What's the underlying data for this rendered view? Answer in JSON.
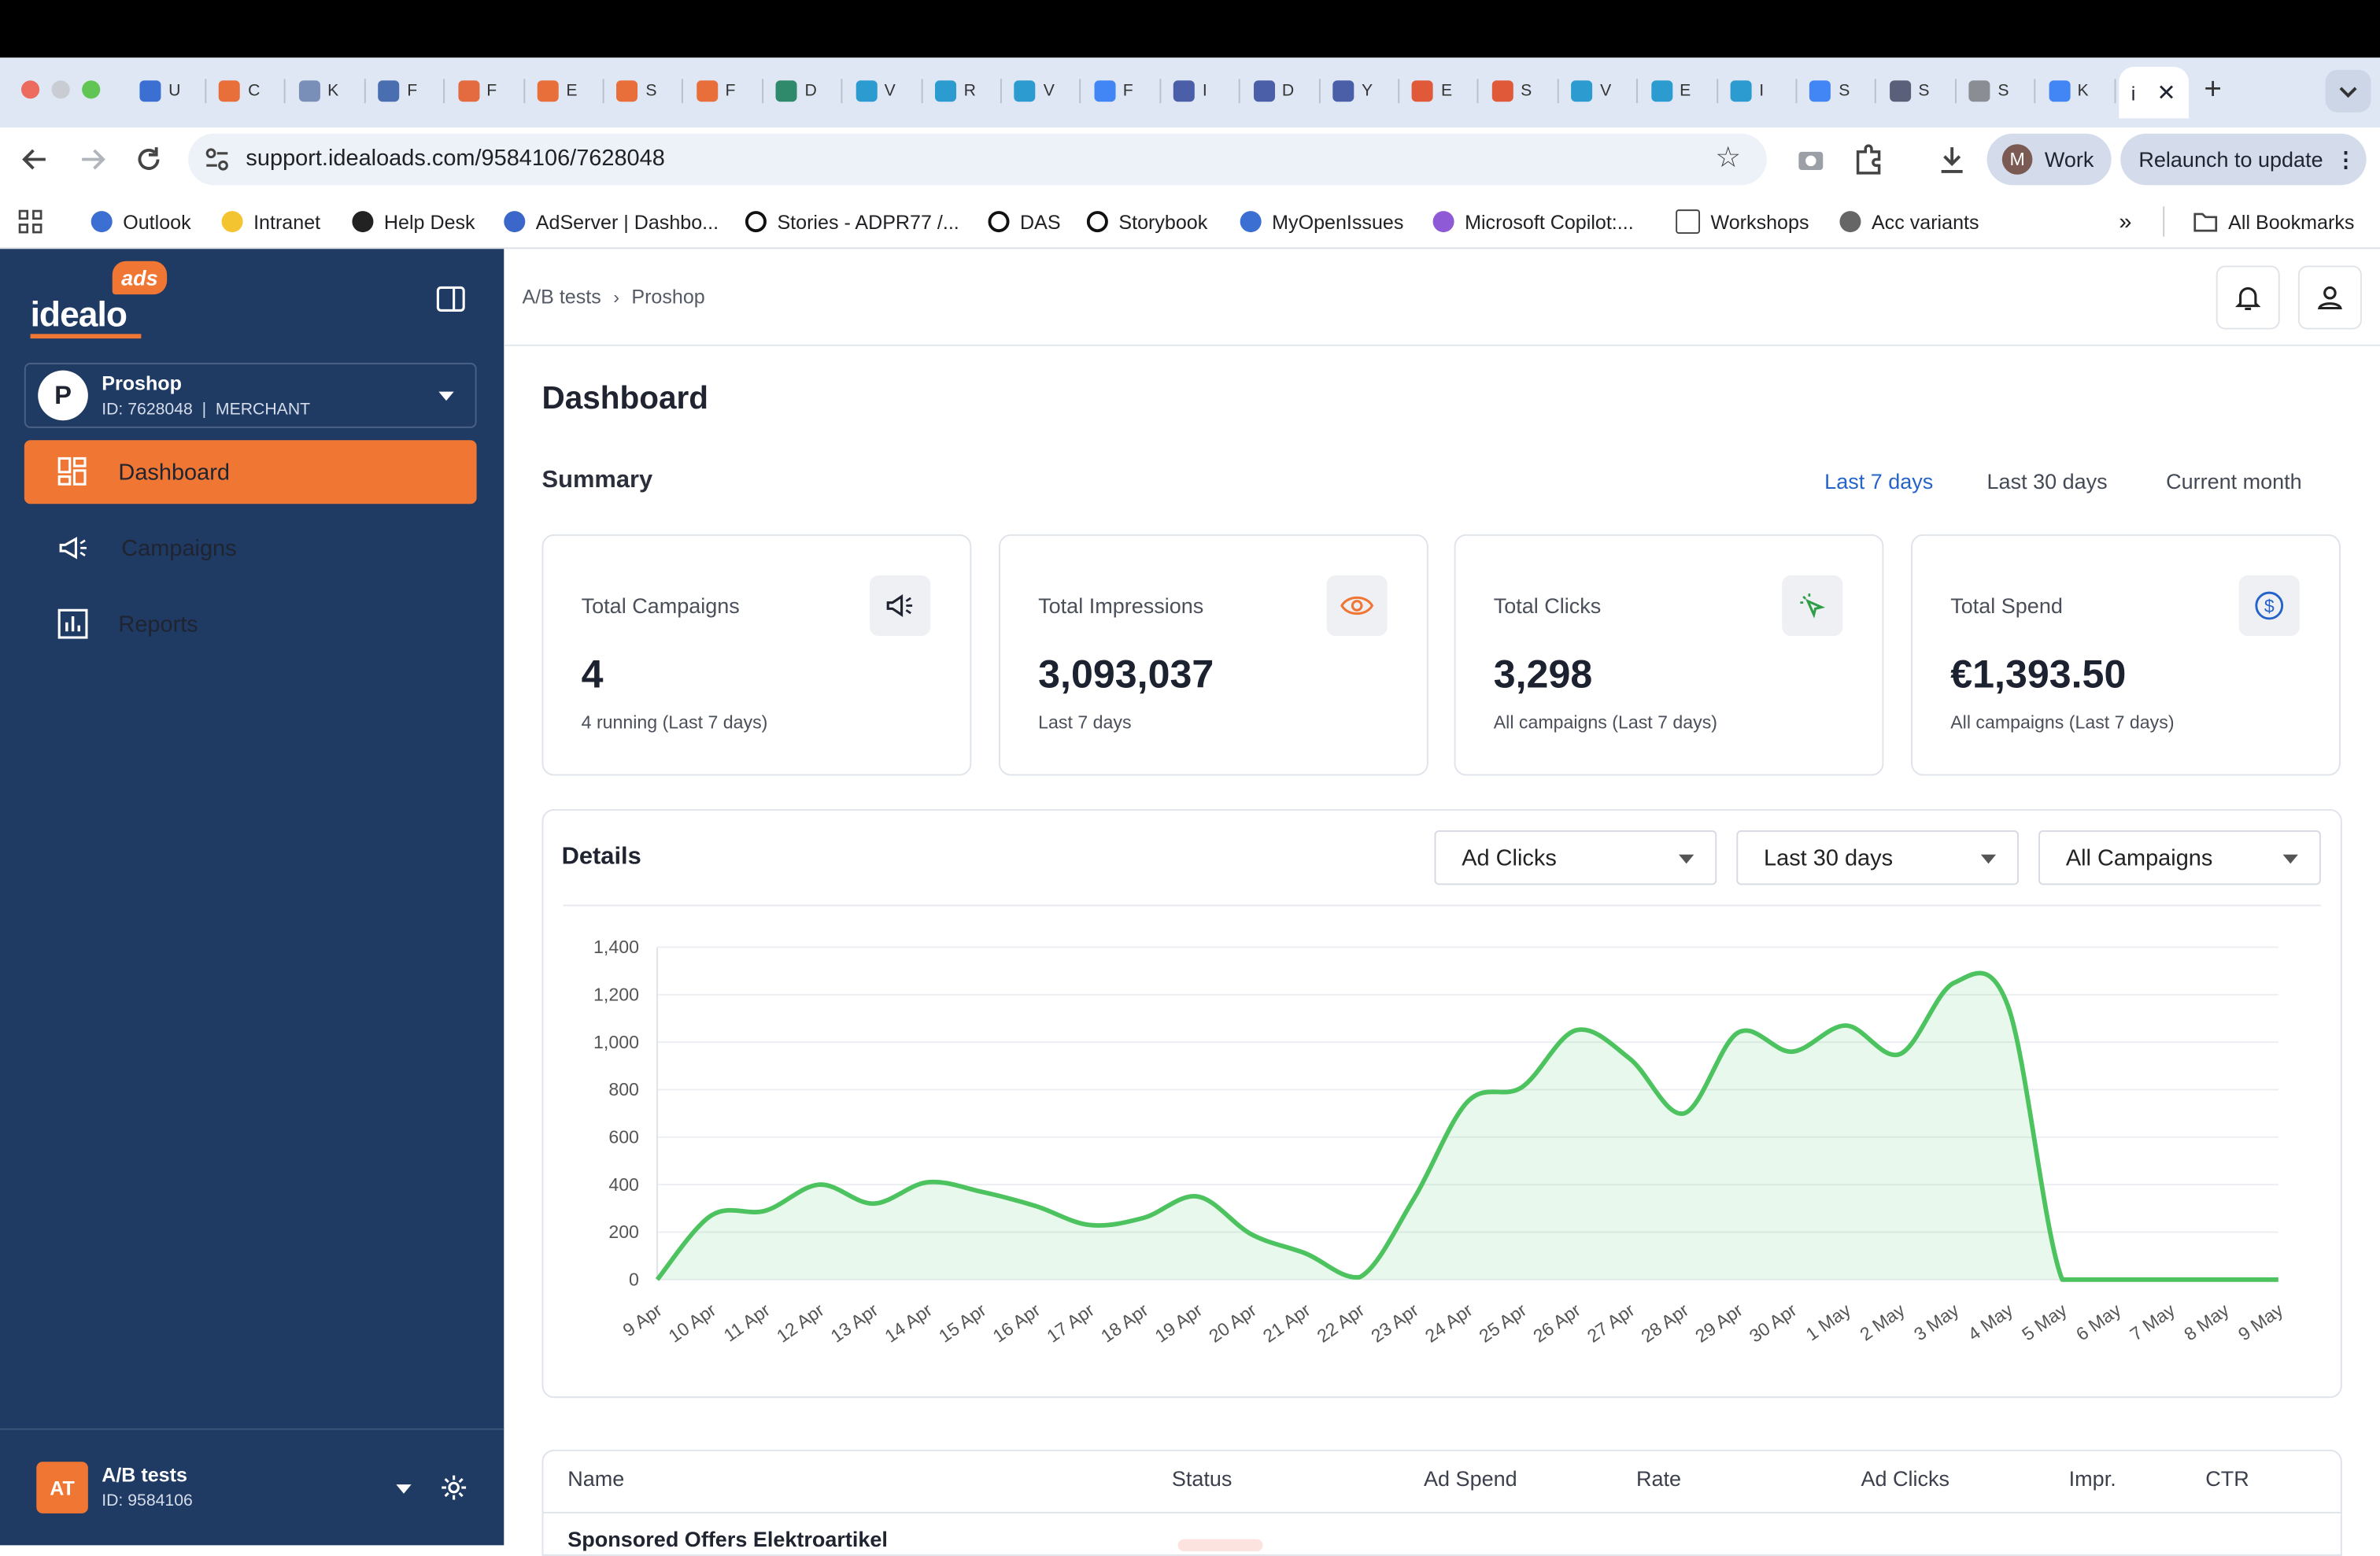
{
  "browser": {
    "tabs": [
      "U",
      "C",
      "K",
      "F",
      "F",
      "E",
      "S",
      "F",
      "D",
      "V",
      "R",
      "V",
      "F",
      "I",
      "D",
      "Y",
      "E",
      "S",
      "V",
      "E",
      "I",
      "S",
      "S",
      "S",
      "K"
    ],
    "active_tab_label": "i",
    "url": "support.idealoads.com/9584106/7628048",
    "profile_initial": "M",
    "profile_label": "Work",
    "relaunch_label": "Relaunch to update",
    "bookmarks": [
      "Outlook",
      "Intranet",
      "Help Desk",
      "AdServer | Dashbo...",
      "Stories - ADPR77 /...",
      "DAS",
      "Storybook",
      "MyOpenIssues",
      "Microsoft Copilot:...",
      "Workshops",
      "Acc variants"
    ],
    "more_bookmarks": "»",
    "all_bookmarks": "All Bookmarks"
  },
  "sidebar": {
    "logo_badge": "ads",
    "logo_text": "idealo",
    "account": {
      "initial": "P",
      "name": "Proshop",
      "meta": "ID: 7628048  |  MERCHANT"
    },
    "nav": [
      "Dashboard",
      "Campaigns",
      "Reports"
    ],
    "footer": {
      "initials": "AT",
      "name": "A/B tests",
      "id": "ID: 9584106"
    }
  },
  "header": {
    "breadcrumb": [
      "A/B tests",
      "Proshop"
    ]
  },
  "main": {
    "title": "Dashboard",
    "summary_title": "Summary",
    "ranges": [
      "Last 7 days",
      "Last 30 days",
      "Current month"
    ],
    "cards": [
      {
        "label": "Total Campaigns",
        "value": "4",
        "sub": "4 running (Last 7 days)",
        "icon": "megaphone-icon"
      },
      {
        "label": "Total Impressions",
        "value": "3,093,037",
        "sub": "Last 7 days",
        "icon": "eye-icon"
      },
      {
        "label": "Total Clicks",
        "value": "3,298",
        "sub": "All campaigns (Last 7 days)",
        "icon": "cursor-click-icon"
      },
      {
        "label": "Total Spend",
        "value": "€1,393.50",
        "sub": "All campaigns (Last 7 days)",
        "icon": "dollar-circle-icon"
      }
    ],
    "details_title": "Details",
    "filters": [
      "Ad Clicks",
      "Last 30 days",
      "All Campaigns"
    ],
    "table_headers": [
      "Name",
      "Status",
      "Ad Spend",
      "Rate",
      "Ad Clicks",
      "Impr.",
      "CTR"
    ],
    "first_row_name": "Sponsored Offers Elektroartikel"
  },
  "colors": {
    "sidebar": "#1f3a63",
    "accent": "#f07633",
    "link": "#2563c9",
    "series": "#4cc35f"
  },
  "chart_data": {
    "type": "area",
    "x": [
      "9 Apr",
      "10 Apr",
      "11 Apr",
      "12 Apr",
      "13 Apr",
      "14 Apr",
      "15 Apr",
      "16 Apr",
      "17 Apr",
      "18 Apr",
      "19 Apr",
      "20 Apr",
      "21 Apr",
      "22 Apr",
      "23 Apr",
      "24 Apr",
      "25 Apr",
      "26 Apr",
      "27 Apr",
      "28 Apr",
      "29 Apr",
      "30 Apr",
      "1 May",
      "2 May",
      "3 May",
      "4 May",
      "5 May",
      "6 May",
      "7 May",
      "8 May",
      "9 May"
    ],
    "series": [
      {
        "values": [
          0,
          270,
          290,
          400,
          320,
          410,
          370,
          310,
          230,
          260,
          350,
          190,
          110,
          10,
          340,
          750,
          810,
          1050,
          930,
          700,
          1040,
          960,
          1070,
          950,
          1250,
          1150,
          0,
          0,
          0,
          0,
          0
        ]
      }
    ],
    "y_ticks": [
      "0",
      "200",
      "400",
      "600",
      "800",
      "1,000",
      "1,200",
      "1,400"
    ],
    "ylim": [
      0,
      1400
    ],
    "grid": true
  }
}
